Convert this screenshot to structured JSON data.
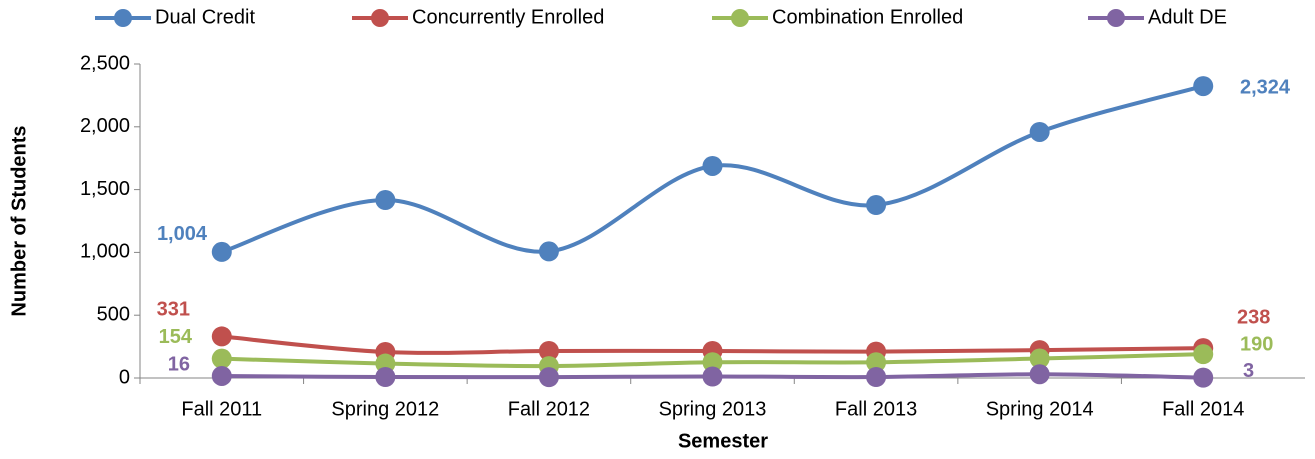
{
  "chart_data": {
    "type": "line",
    "x_label": "Semester",
    "y_label": "Number of Students",
    "categories": [
      "Fall 2011",
      "Spring 2012",
      "Fall 2012",
      "Spring 2013",
      "Fall 2013",
      "Spring 2014",
      "Fall 2014"
    ],
    "series": [
      {
        "name": "Dual Credit",
        "color": "#4f81bd",
        "values": [
          1004,
          1417,
          1008,
          1688,
          1377,
          1959,
          2324
        ],
        "value_labels": [
          "1,004",
          null,
          null,
          null,
          null,
          null,
          "2,324"
        ]
      },
      {
        "name": "Concurrently Enrolled",
        "color": "#c0504d",
        "values": [
          331,
          207,
          215,
          215,
          210,
          222,
          238
        ],
        "value_labels": [
          "331",
          null,
          null,
          null,
          null,
          null,
          "238"
        ]
      },
      {
        "name": "Combination Enrolled",
        "color": "#9bbb59",
        "values": [
          154,
          115,
          95,
          125,
          125,
          155,
          190
        ],
        "value_labels": [
          "154",
          null,
          null,
          null,
          null,
          null,
          "190"
        ]
      },
      {
        "name": "Adult DE",
        "color": "#8064a2",
        "values": [
          16,
          8,
          7,
          12,
          8,
          30,
          3
        ],
        "value_labels": [
          "16",
          null,
          null,
          null,
          null,
          null,
          "3"
        ]
      }
    ],
    "ylim": [
      0,
      2500
    ],
    "yticks": [
      0,
      500,
      {
        "value": 1000,
        "label": "1,000"
      },
      {
        "value": 1500,
        "label": "1,500"
      },
      {
        "value": 2000,
        "label": "2,000"
      },
      {
        "value": 2500,
        "label": "2,500"
      }
    ],
    "smooth": true,
    "legend": "top"
  }
}
